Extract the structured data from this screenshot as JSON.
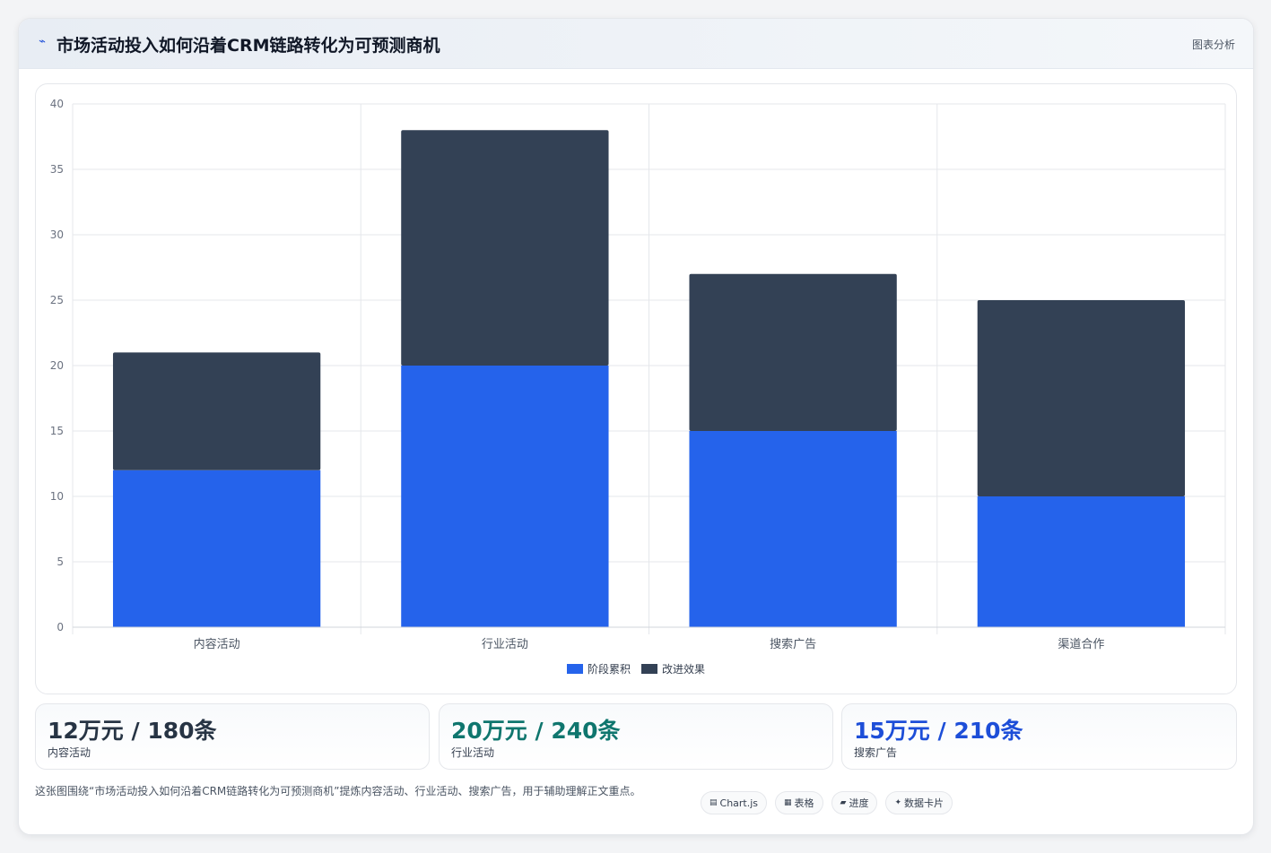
{
  "header": {
    "icon": "trend-icon",
    "title": "市场活动投入如何沿着CRM链路转化为可预测商机",
    "tag": "图表分析"
  },
  "chart_data": {
    "type": "bar",
    "stacked": true,
    "categories": [
      "内容活动",
      "行业活动",
      "搜索广告",
      "渠道合作"
    ],
    "series": [
      {
        "name": "阶段累积",
        "color": "#2563eb",
        "values": [
          12,
          20,
          15,
          10
        ]
      },
      {
        "name": "改进效果",
        "color": "#334155",
        "values": [
          9,
          18,
          12,
          15
        ]
      }
    ],
    "ylim": [
      0,
      40
    ],
    "yticks": [
      0,
      5,
      10,
      15,
      20,
      25,
      30,
      35,
      40
    ],
    "grid": true,
    "legend": "bottom-center"
  },
  "stats": [
    {
      "value": "12万元 / 180条",
      "label": "内容活动",
      "color": "#273444"
    },
    {
      "value": "20万元 / 240条",
      "label": "行业活动",
      "color": "#0f766e"
    },
    {
      "value": "15万元 / 210条",
      "label": "搜索广告",
      "color": "#1d4ed8"
    }
  ],
  "footer": {
    "text": "这张图围绕“市场活动投入如何沿着CRM链路转化为可预测商机”提炼内容活动、行业活动、搜索广告，用于辅助理解正文重点。"
  },
  "chips": [
    {
      "icon": "▤",
      "label": "Chart.js"
    },
    {
      "icon": "▦",
      "label": "表格"
    },
    {
      "icon": "▰",
      "label": "进度"
    },
    {
      "icon": "✦",
      "label": "数据卡片"
    }
  ]
}
